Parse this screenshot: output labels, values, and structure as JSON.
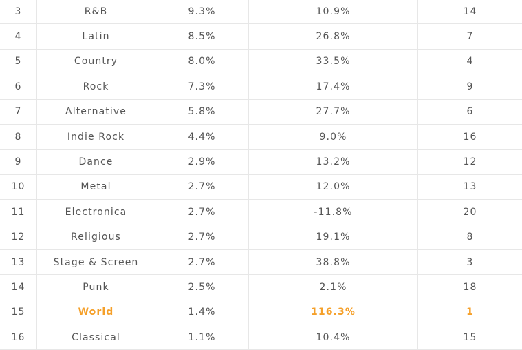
{
  "table": {
    "rows": [
      {
        "rank": "3",
        "genre": "R&B",
        "share": "9.3%",
        "growth": "10.9%",
        "growth_rank": "14",
        "highlight": false
      },
      {
        "rank": "4",
        "genre": "Latin",
        "share": "8.5%",
        "growth": "26.8%",
        "growth_rank": "7",
        "highlight": false
      },
      {
        "rank": "5",
        "genre": "Country",
        "share": "8.0%",
        "growth": "33.5%",
        "growth_rank": "4",
        "highlight": false
      },
      {
        "rank": "6",
        "genre": "Rock",
        "share": "7.3%",
        "growth": "17.4%",
        "growth_rank": "9",
        "highlight": false
      },
      {
        "rank": "7",
        "genre": "Alternative",
        "share": "5.8%",
        "growth": "27.7%",
        "growth_rank": "6",
        "highlight": false
      },
      {
        "rank": "8",
        "genre": "Indie Rock",
        "share": "4.4%",
        "growth": "9.0%",
        "growth_rank": "16",
        "highlight": false
      },
      {
        "rank": "9",
        "genre": "Dance",
        "share": "2.9%",
        "growth": "13.2%",
        "growth_rank": "12",
        "highlight": false
      },
      {
        "rank": "10",
        "genre": "Metal",
        "share": "2.7%",
        "growth": "12.0%",
        "growth_rank": "13",
        "highlight": false
      },
      {
        "rank": "11",
        "genre": "Electronica",
        "share": "2.7%",
        "growth": "-11.8%",
        "growth_rank": "20",
        "highlight": false
      },
      {
        "rank": "12",
        "genre": "Religious",
        "share": "2.7%",
        "growth": "19.1%",
        "growth_rank": "8",
        "highlight": false
      },
      {
        "rank": "13",
        "genre": "Stage & Screen",
        "share": "2.7%",
        "growth": "38.8%",
        "growth_rank": "3",
        "highlight": false
      },
      {
        "rank": "14",
        "genre": "Punk",
        "share": "2.5%",
        "growth": "2.1%",
        "growth_rank": "18",
        "highlight": false
      },
      {
        "rank": "15",
        "genre": "World",
        "share": "1.4%",
        "growth": "116.3%",
        "growth_rank": "1",
        "highlight": true
      },
      {
        "rank": "16",
        "genre": "Classical",
        "share": "1.1%",
        "growth": "10.4%",
        "growth_rank": "15",
        "highlight": false
      }
    ]
  },
  "colors": {
    "text": "#555555",
    "highlight": "#f5a02a",
    "divider": "#e7e7e7"
  }
}
